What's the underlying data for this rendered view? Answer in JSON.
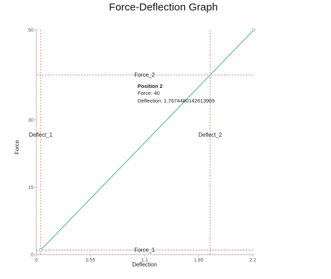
{
  "chart_data": {
    "type": "line",
    "title": "Force-Deflection Graph",
    "xlabel": "Deflection",
    "ylabel": "Force",
    "xlim": [
      0,
      2.2
    ],
    "ylim": [
      0,
      50
    ],
    "x_ticks": [
      "0",
      "0.55",
      "1.1",
      "1.65",
      "2.2"
    ],
    "y_ticks": [
      "0",
      "15",
      "30",
      "50"
    ],
    "x_tick_values": [
      0,
      0.55,
      1.1,
      1.65,
      2.2
    ],
    "y_tick_values": [
      0,
      15,
      30,
      50
    ],
    "grid": false,
    "series": [
      {
        "color": "#5cc48a",
        "x": [
          0.0441862,
          2.2088
        ],
        "y": [
          1,
          50
        ]
      }
    ],
    "reference_lines": {
      "horizontal": [
        {
          "label": "Force_1",
          "y": 1
        },
        {
          "label": "Force_2",
          "y": 40
        }
      ],
      "vertical": [
        {
          "label": "Deflect_1",
          "x": 0.0441862
        },
        {
          "label": "Deflect_2",
          "x": 1.7674480142613909
        }
      ],
      "color": "#e05a5a"
    },
    "tooltip": {
      "title": "Position 2",
      "force_line": "Force: 40",
      "deflection_line": "Deflection: 1.7674480142613909"
    }
  }
}
